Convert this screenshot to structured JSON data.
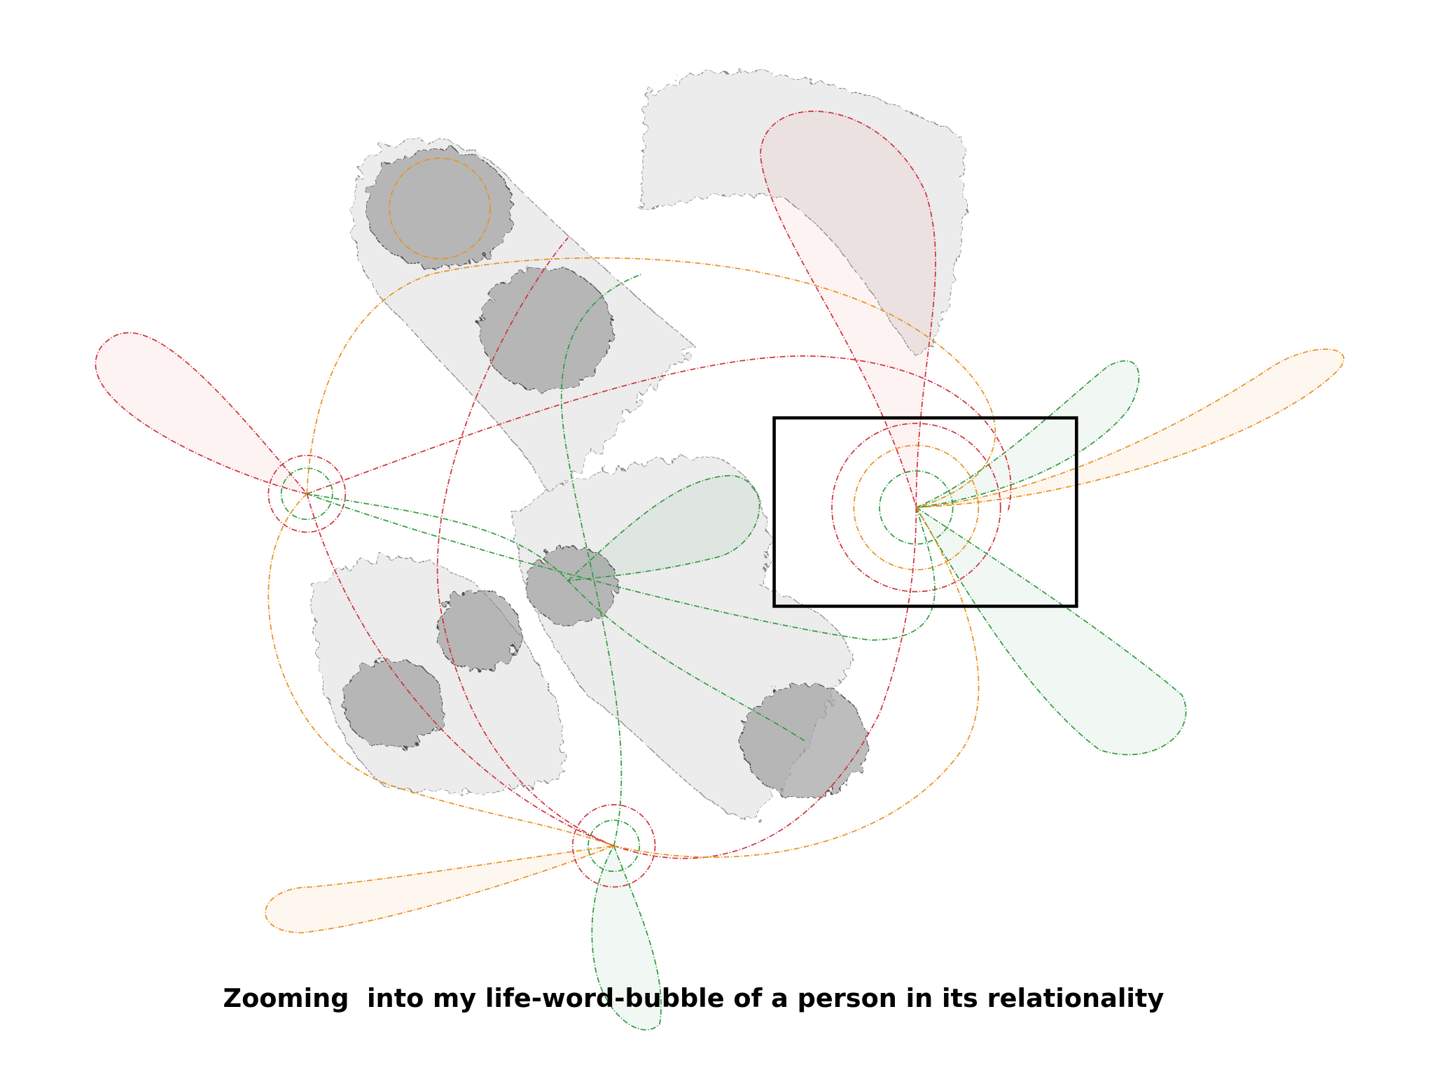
{
  "caption": "Zooming  into my life-word-bubble of a person in its relationality"
}
